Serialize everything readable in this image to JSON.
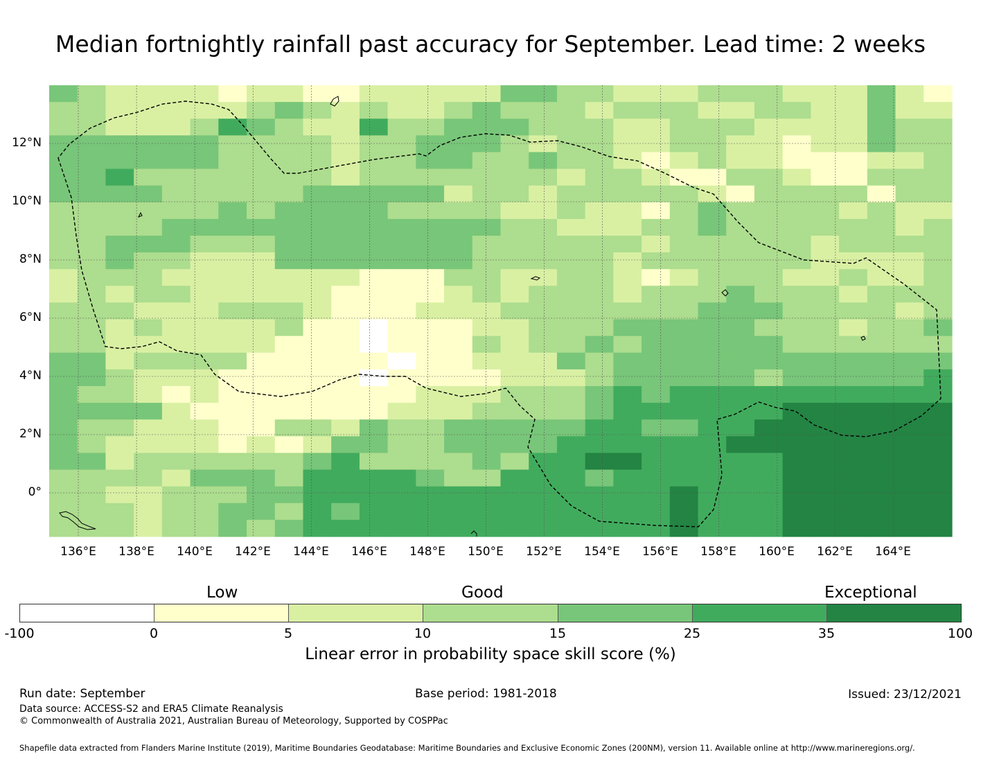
{
  "title": "Median fortnightly rainfall past accuracy for September. Lead time: 2 weeks",
  "map": {
    "lat_labels": [
      "12°N",
      "10°N",
      "8°N",
      "6°N",
      "4°N",
      "2°N",
      "0°"
    ],
    "lon_labels": [
      "136°E",
      "138°E",
      "140°E",
      "142°E",
      "144°E",
      "146°E",
      "148°E",
      "150°E",
      "152°E",
      "154°E",
      "156°E",
      "158°E",
      "160°E",
      "162°E",
      "164°E"
    ],
    "lat_values": [
      12,
      10,
      8,
      6,
      4,
      2,
      0
    ],
    "lon_values": [
      136,
      138,
      140,
      142,
      144,
      146,
      148,
      150,
      152,
      154,
      156,
      158,
      160,
      162,
      164
    ],
    "extent": {
      "lon_min": 135,
      "lon_max": 166,
      "lat_min": -1.5,
      "lat_max": 14
    },
    "grid_rows": [
      "43222212211222224433222333222421",
      "33222223432322343332333223322422",
      "33222354322533444333223332222433",
      "44444433332334443233223322122433",
      "44444433332334433433212322111223",
      "44533333332333333323321133211333",
      "44443333344444233233333213333133",
      "33333343444433332232213433332322",
      "33334444444444443322233433333323",
      "33444333444444433333323333323333",
      "33433222444444433333233333322223",
      "23332222222111332233212333223223",
      "23233222221111232333233343332333",
      "33322233321112223333333444333323",
      "33232222311011122333444443332334",
      "33222222111011132334344444333333",
      "44233331111101122243444444444444",
      "44322211111011112223444443444445",
      "43321211111112223334545555555555",
      "44442111111122233334555555666666",
      "43322211332433444445544556666666",
      "43222212124433444455555566666666",
      "44233333345333343556655555666666",
      "33332444355554335554555555666666",
      "33223334455555555555556555666666",
      "33323344354555555555556555666666",
      "33323343455555555555556555666666"
    ]
  },
  "categories": [
    "Low",
    "Good",
    "Exceptional"
  ],
  "colorbar": {
    "ticks": [
      "-100",
      "0",
      "5",
      "10",
      "15",
      "25",
      "35",
      "100"
    ],
    "colors": [
      "#ffffff",
      "#ffffcc",
      "#d9f0a3",
      "#addd8e",
      "#78c679",
      "#41ab5d",
      "#238443"
    ],
    "label": "Linear error in probability space skill score (%)"
  },
  "footer": {
    "run_date": "Run date: September",
    "base_period": "Base period: 1981-2018",
    "issued": "Issued: 23/12/2021",
    "data_source": "Data source: ACCESS-S2 and ERA5 Climate Reanalysis",
    "copyright": "© Commonwealth of Australia 2021, Australian Bureau of Meteorology, Supported by COSPPac",
    "shapefile": "Shapefile data extracted from Flanders Marine Institute (2019), Maritime Boundaries Geodatabase: Maritime Boundaries and Exclusive Economic Zones (200NM), version 11. Available online at http://www.marineregions.org/."
  }
}
